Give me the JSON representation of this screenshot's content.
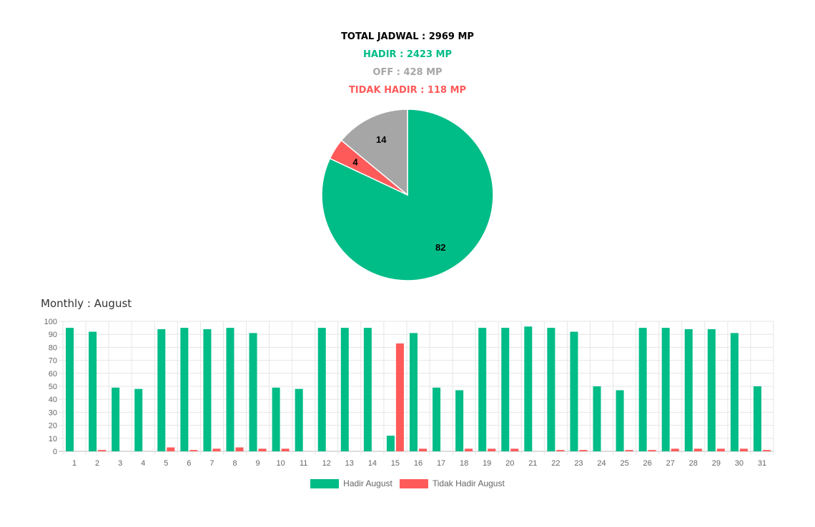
{
  "summary": {
    "total": "TOTAL JADWAL : 2969 MP",
    "hadir": "HADIR : 2423 MP",
    "off": "OFF : 428 MP",
    "tidak_hadir": "TIDAK HADIR : 118 MP"
  },
  "colors": {
    "hadir": "#00bc87",
    "off": "#a6a6a6",
    "tidak_hadir": "#ff5a5a",
    "total": "#000000"
  },
  "chart_data": [
    {
      "type": "pie",
      "slices": [
        {
          "label": "HADIR",
          "value": 82,
          "color": "#00bc87"
        },
        {
          "label": "TIDAK HADIR",
          "value": 4,
          "color": "#ff5a5a"
        },
        {
          "label": "OFF",
          "value": 14,
          "color": "#a6a6a6"
        }
      ]
    },
    {
      "type": "bar",
      "title": "Monthly : August",
      "categories": [
        "1",
        "2",
        "3",
        "4",
        "5",
        "6",
        "7",
        "8",
        "9",
        "10",
        "11",
        "12",
        "13",
        "14",
        "15",
        "16",
        "17",
        "18",
        "19",
        "20",
        "21",
        "22",
        "23",
        "24",
        "25",
        "26",
        "27",
        "28",
        "29",
        "30",
        "31"
      ],
      "series": [
        {
          "name": "Hadir August",
          "color": "#00bc87",
          "values": [
            95,
            92,
            49,
            48,
            94,
            95,
            94,
            95,
            91,
            49,
            48,
            95,
            95,
            95,
            12,
            91,
            49,
            47,
            95,
            95,
            96,
            95,
            92,
            50,
            47,
            95,
            95,
            94,
            94,
            91,
            50
          ]
        },
        {
          "name": "Tidak Hadir August",
          "color": "#ff5a5a",
          "values": [
            0,
            1,
            0,
            0,
            3,
            1,
            2,
            3,
            2,
            2,
            0,
            0,
            0,
            0,
            83,
            2,
            0,
            2,
            2,
            2,
            0,
            1,
            1,
            0,
            1,
            1,
            2,
            2,
            2,
            2,
            1
          ]
        }
      ],
      "ylim": [
        0,
        100
      ],
      "yticks": [
        0,
        10,
        20,
        30,
        40,
        50,
        60,
        70,
        80,
        90,
        100
      ],
      "grid": true,
      "legend": "bottom"
    }
  ]
}
